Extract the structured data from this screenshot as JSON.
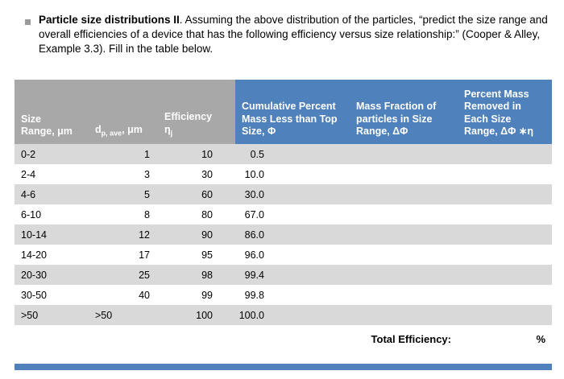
{
  "colors": {
    "header_gray": "#a8a8a8",
    "header_blue": "#4f81bd",
    "row_alt": "#d9d9d9",
    "footer_bar": "#4f81bd"
  },
  "intro": {
    "title": "Particle size distributions II",
    "body": ". Assuming the above distribution of the particles, “predict the size range and overall efficiencies of a device that has the following efficiency versus size relationship:”  (Cooper & Alley, Example 3.3). Fill in the table below."
  },
  "table": {
    "headers": {
      "size_range": {
        "line1": "Size",
        "line2": "Range, μm"
      },
      "dp_ave": {
        "base": "d",
        "sub": "p, ave",
        "unit": ", μm"
      },
      "efficiency": {
        "label": "Efficiency",
        "symbol": "η",
        "symbol_sub": "j"
      },
      "cumulative": "Cumulative Percent Mass Less than Top Size, Φ",
      "mass_fraction": "Mass Fraction of particles in Size Range, ΔΦ",
      "removed": "Percent Mass Removed in Each Size Range,  ΔΦ ∗η"
    },
    "rows": [
      [
        "0-2",
        "1",
        "10",
        "0.5",
        "",
        ""
      ],
      [
        "2-4",
        "3",
        "30",
        "10.0",
        "",
        ""
      ],
      [
        "4-6",
        "5",
        "60",
        "30.0",
        "",
        ""
      ],
      [
        "6-10",
        "8",
        "80",
        "67.0",
        "",
        ""
      ],
      [
        "10-14",
        "12",
        "90",
        "86.0",
        "",
        ""
      ],
      [
        "14-20",
        "17",
        "95",
        "96.0",
        "",
        ""
      ],
      [
        "20-30",
        "25",
        "98",
        "99.4",
        "",
        ""
      ],
      [
        "30-50",
        "40",
        "99",
        "99.8",
        "",
        ""
      ],
      [
        ">50",
        ">50",
        "100",
        "100.0",
        "",
        ""
      ]
    ],
    "total_label": "Total Efficiency:",
    "total_unit": "%"
  }
}
